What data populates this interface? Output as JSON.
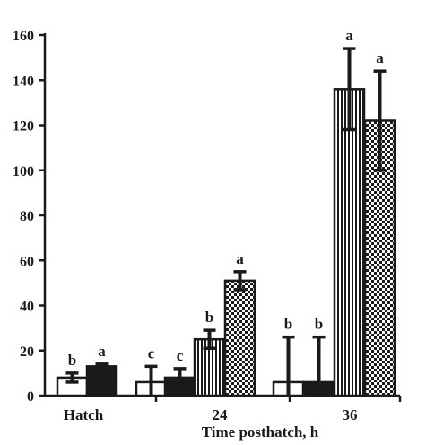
{
  "chart_data": {
    "type": "bar",
    "title": "",
    "xlabel": "Time posthatch, h",
    "ylabel": "",
    "ylim": [
      0,
      160
    ],
    "yticks": [
      "0",
      "20",
      "40",
      "60",
      "80",
      "100",
      "120",
      "140",
      "160"
    ],
    "categories": [
      "Hatch",
      "24",
      "36"
    ],
    "grid": false,
    "legend": "none",
    "series": [
      {
        "pattern": "open",
        "values": [
          8,
          6,
          6
        ],
        "errors": [
          2,
          7,
          20
        ],
        "labels": [
          "b",
          "c",
          "b"
        ]
      },
      {
        "pattern": "solid",
        "values": [
          13,
          8,
          6
        ],
        "errors": [
          1,
          4,
          20
        ],
        "labels": [
          "a",
          "c",
          "b"
        ]
      },
      {
        "pattern": "vertical-stripes",
        "values": [
          null,
          25,
          136
        ],
        "errors": [
          null,
          4,
          18
        ],
        "labels": [
          null,
          "b",
          "a"
        ]
      },
      {
        "pattern": "checkered",
        "values": [
          null,
          51,
          122
        ],
        "errors": [
          null,
          4,
          22
        ],
        "labels": [
          null,
          "a",
          "a"
        ]
      }
    ]
  }
}
